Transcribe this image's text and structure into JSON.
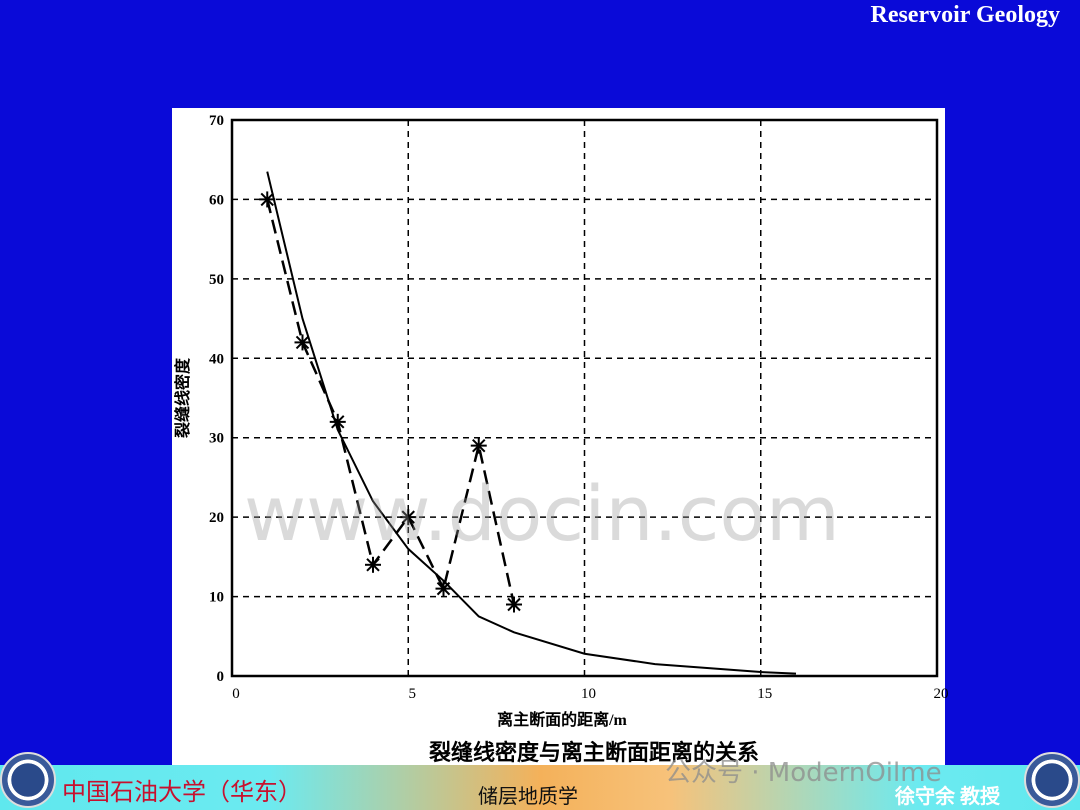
{
  "slide": {
    "title": "Reservoir Geology",
    "school": "中国石油大学（华东）",
    "course": "储层地质学",
    "professor": "徐守余 教授",
    "watermark_site": "www.docin.com",
    "watermark_account": "公众号 · ModernOilme",
    "background_color": "#0a0ad8"
  },
  "chart_data": {
    "type": "line",
    "title": "裂缝线密度与离主断面距离的关系",
    "xlabel": "离主断面的距离/m",
    "ylabel": "裂缝线密度",
    "xlim": [
      0,
      20
    ],
    "ylim": [
      0,
      70
    ],
    "xticks": [
      "0",
      "5",
      "10",
      "15",
      "20"
    ],
    "yticks": [
      "0",
      "10",
      "20",
      "30",
      "40",
      "50",
      "60",
      "70"
    ],
    "grid": true,
    "series": [
      {
        "style": "dashed-asterisk",
        "x": [
          1,
          2,
          3,
          4,
          5,
          6,
          7,
          8
        ],
        "y": [
          60,
          42,
          32,
          14,
          20,
          11,
          29,
          9
        ]
      },
      {
        "style": "solid-fit",
        "x": [
          1,
          2,
          3,
          4,
          5,
          6,
          7,
          8,
          10,
          12,
          15,
          16
        ],
        "y": [
          63.5,
          45,
          31,
          22,
          16,
          12,
          7.5,
          5.5,
          2.8,
          1.5,
          0.5,
          0.3
        ]
      }
    ]
  }
}
